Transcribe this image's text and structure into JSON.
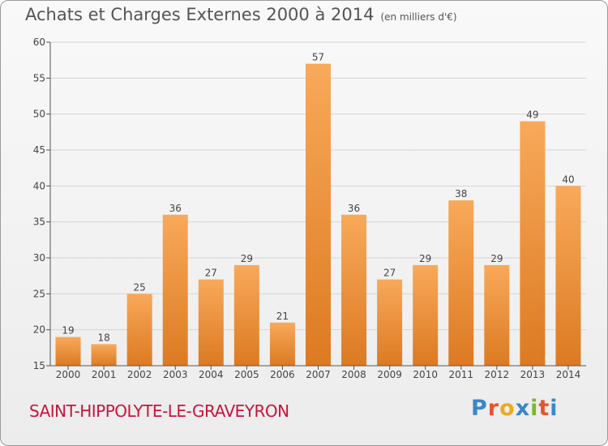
{
  "title": "Achats et Charges Externes 2000 à 2014",
  "unit": "(en milliers d'€)",
  "commune": "SAINT-HIPPOLYTE-LE-GRAVEYRON",
  "logo": {
    "text": "Proxiti",
    "colors": [
      "#3a87c8",
      "#e8542c",
      "#f2a81d",
      "#3a87c8",
      "#7db72f",
      "#e8542c",
      "#3a87c8"
    ]
  },
  "colors": {
    "bar_light": "#f8a95a",
    "bar_dark": "#dc7a22",
    "axis": "#555555",
    "grid": "#d4d4d4",
    "commune": "#c8143c"
  },
  "chart_data": {
    "type": "bar",
    "categories": [
      "2000",
      "2001",
      "2002",
      "2003",
      "2004",
      "2005",
      "2006",
      "2007",
      "2008",
      "2009",
      "2010",
      "2011",
      "2012",
      "2013",
      "2014"
    ],
    "values": [
      19,
      18,
      25,
      36,
      27,
      29,
      21,
      57,
      36,
      27,
      29,
      38,
      29,
      49,
      40
    ],
    "ylim": [
      15,
      60
    ],
    "yticks": [
      15,
      20,
      25,
      30,
      35,
      40,
      45,
      50,
      55,
      60
    ],
    "xlabel": "",
    "ylabel": "",
    "grid": true
  }
}
